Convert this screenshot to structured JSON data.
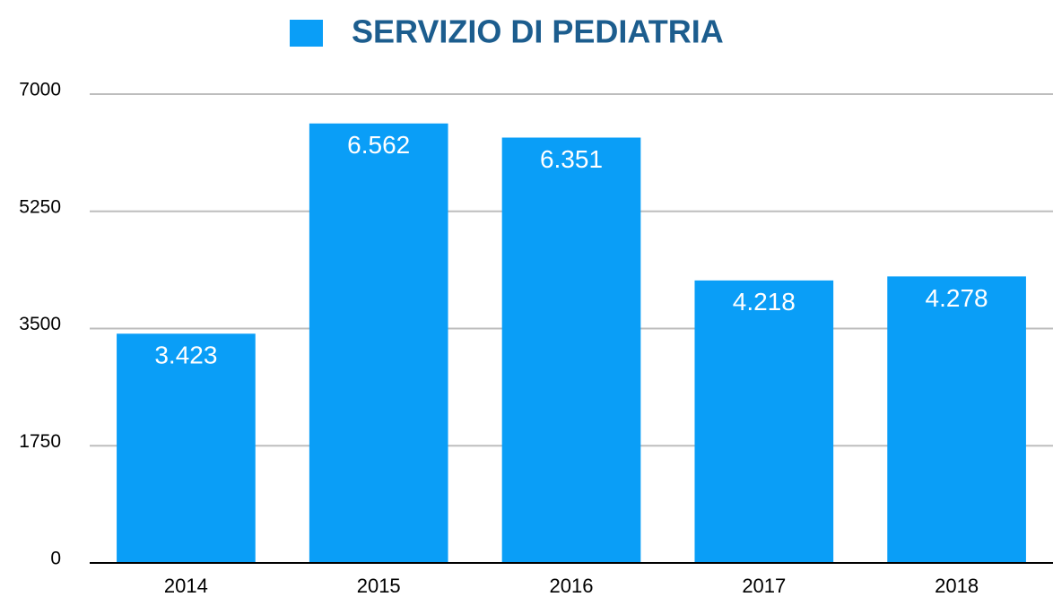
{
  "chart_data": {
    "type": "bar",
    "series": [
      {
        "name": "SERVIZIO DI PEDIATRIA",
        "color": "#0a9ef7",
        "values": [
          3423,
          6562,
          6351,
          4218,
          4278
        ],
        "value_labels": [
          "3.423",
          "6.562",
          "6.351",
          "4.218",
          "4.278"
        ]
      }
    ],
    "categories": [
      "2014",
      "2015",
      "2016",
      "2017",
      "2018"
    ],
    "ylim": [
      0,
      7000
    ],
    "yticks": [
      0,
      1750,
      3500,
      5250,
      7000
    ],
    "grid": true,
    "legend": "top"
  }
}
